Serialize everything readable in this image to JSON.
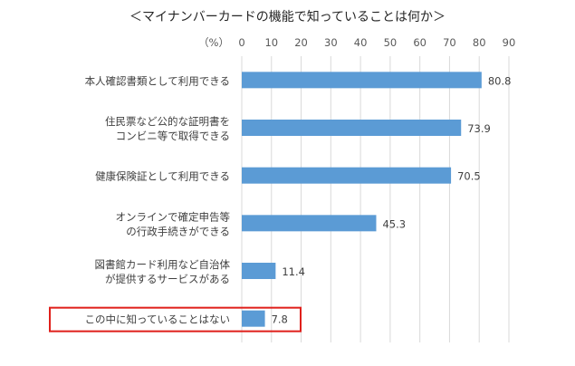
{
  "chart_data": {
    "type": "bar",
    "orientation": "horizontal",
    "title": "＜マイナンバーカードの機能で知っていることは何か＞",
    "unit_label": "（%）",
    "xlim": [
      0,
      90
    ],
    "ticks": [
      0,
      10,
      20,
      30,
      40,
      50,
      60,
      70,
      80,
      90
    ],
    "grid": true,
    "categories": [
      [
        "本人確認書類として利用できる"
      ],
      [
        "住民票など公的な証明書を",
        "コンビニ等で取得できる"
      ],
      [
        "健康保険証として利用できる"
      ],
      [
        "オンラインで確定申告等",
        "の行政手続きができる"
      ],
      [
        "図書館カード利用など自治体",
        "が提供するサービスがある"
      ],
      [
        "この中に知っていることはない"
      ]
    ],
    "values": [
      80.8,
      73.9,
      70.5,
      45.3,
      11.4,
      7.8
    ],
    "value_labels": [
      "80.8",
      "73.9",
      "70.5",
      "45.3",
      "11.4",
      "7.8"
    ],
    "bar_color": "#5b9bd5",
    "highlight_color": "#e0201b",
    "highlighted_index": 5
  }
}
